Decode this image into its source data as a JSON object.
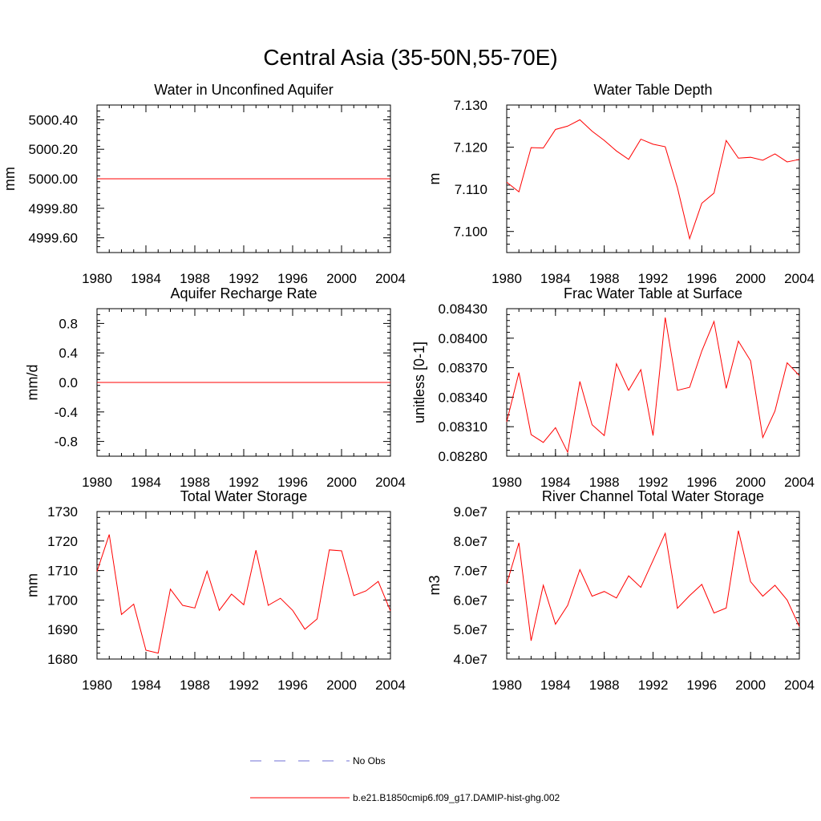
{
  "figure_title": "Central Asia (35-50N,55-70E)",
  "colors": {
    "series": "#ff0000",
    "obs": "#6f6fd6",
    "axis": "#000000"
  },
  "legend": {
    "entries": [
      {
        "label": "No Obs",
        "style": "dashed",
        "color": "#6f6fd6"
      },
      {
        "label": "b.e21.B1850cmip6.f09_g17.DAMIP-hist-ghg.002",
        "style": "solid",
        "color": "#ff0000"
      }
    ]
  },
  "chart_data": [
    {
      "id": "water-unconfined",
      "type": "line",
      "title": "Water in Unconfined Aquifer",
      "xlabel": "",
      "ylabel": "mm",
      "xlim": [
        1980,
        2004
      ],
      "ylim": [
        4999.5,
        5000.5
      ],
      "xticks": [
        1980,
        1984,
        1988,
        1992,
        1996,
        2000,
        2004
      ],
      "xticklabels": [
        "1980",
        "1984",
        "1988",
        "1992",
        "1996",
        "2000",
        "2004"
      ],
      "yticks": [
        4999.6,
        4999.8,
        5000.0,
        5000.2,
        5000.4
      ],
      "yticklabels": [
        "4999.60",
        "4999.80",
        "5000.00",
        "5000.20",
        "5000.40"
      ],
      "x": [
        1980,
        1981,
        1982,
        1983,
        1984,
        1985,
        1986,
        1987,
        1988,
        1989,
        1990,
        1991,
        1992,
        1993,
        1994,
        1995,
        1996,
        1997,
        1998,
        1999,
        2000,
        2001,
        2002,
        2003,
        2004
      ],
      "series": [
        {
          "values": [
            5000,
            5000,
            5000,
            5000,
            5000,
            5000,
            5000,
            5000,
            5000,
            5000,
            5000,
            5000,
            5000,
            5000,
            5000,
            5000,
            5000,
            5000,
            5000,
            5000,
            5000,
            5000,
            5000,
            5000,
            5000
          ]
        }
      ]
    },
    {
      "id": "water-table-depth",
      "type": "line",
      "title": "Water Table Depth",
      "xlabel": "",
      "ylabel": "m",
      "xlim": [
        1980,
        2004
      ],
      "ylim": [
        7.095,
        7.13
      ],
      "xticks": [
        1980,
        1984,
        1988,
        1992,
        1996,
        2000,
        2004
      ],
      "xticklabels": [
        "1980",
        "1984",
        "1988",
        "1992",
        "1996",
        "2000",
        "2004"
      ],
      "yticks": [
        7.1,
        7.11,
        7.12,
        7.13
      ],
      "yticklabels": [
        "7.100",
        "7.110",
        "7.120",
        "7.130"
      ],
      "x": [
        1980,
        1981,
        1982,
        1983,
        1984,
        1985,
        1986,
        1987,
        1988,
        1989,
        1990,
        1991,
        1992,
        1993,
        1994,
        1995,
        1996,
        1997,
        1998,
        1999,
        2000,
        2001,
        2002,
        2003,
        2004
      ],
      "series": [
        {
          "values": [
            7.1117,
            7.1094,
            7.1199,
            7.1198,
            7.1242,
            7.125,
            7.1265,
            7.1238,
            7.1216,
            7.1191,
            7.1171,
            7.1219,
            7.1207,
            7.1201,
            7.1104,
            7.0983,
            7.1067,
            7.1091,
            7.1216,
            7.1174,
            7.1176,
            7.1169,
            7.1184,
            7.1165,
            7.1171
          ]
        }
      ]
    },
    {
      "id": "aquifer-recharge",
      "type": "line",
      "title": "Aquifer Recharge Rate",
      "xlabel": "",
      "ylabel": "mm/d",
      "xlim": [
        1980,
        2004
      ],
      "ylim": [
        -1.0,
        1.0
      ],
      "xticks": [
        1980,
        1984,
        1988,
        1992,
        1996,
        2000,
        2004
      ],
      "xticklabels": [
        "1980",
        "1984",
        "1988",
        "1992",
        "1996",
        "2000",
        "2004"
      ],
      "yticks": [
        -0.8,
        -0.4,
        0.0,
        0.4,
        0.8
      ],
      "yticklabels": [
        "-0.8",
        "-0.4",
        "0.0",
        "0.4",
        "0.8"
      ],
      "x": [
        1980,
        1981,
        1982,
        1983,
        1984,
        1985,
        1986,
        1987,
        1988,
        1989,
        1990,
        1991,
        1992,
        1993,
        1994,
        1995,
        1996,
        1997,
        1998,
        1999,
        2000,
        2001,
        2002,
        2003,
        2004
      ],
      "series": [
        {
          "values": [
            0,
            0,
            0,
            0,
            0,
            0,
            0,
            0,
            0,
            0,
            0,
            0,
            0,
            0,
            0,
            0,
            0,
            0,
            0,
            0,
            0,
            0,
            0,
            0,
            0
          ]
        }
      ]
    },
    {
      "id": "frac-water-table",
      "type": "line",
      "title": "Frac Water Table at Surface",
      "xlabel": "",
      "ylabel": "unitless [0-1]",
      "xlim": [
        1980,
        2004
      ],
      "ylim": [
        0.0828,
        0.0843
      ],
      "xticks": [
        1980,
        1984,
        1988,
        1992,
        1996,
        2000,
        2004
      ],
      "xticklabels": [
        "1980",
        "1984",
        "1988",
        "1992",
        "1996",
        "2000",
        "2004"
      ],
      "yticks": [
        0.0828,
        0.0831,
        0.0834,
        0.0837,
        0.084,
        0.0843
      ],
      "yticklabels": [
        "0.08280",
        "0.08310",
        "0.08340",
        "0.08370",
        "0.08400",
        "0.08430"
      ],
      "x": [
        1980,
        1981,
        1982,
        1983,
        1984,
        1985,
        1986,
        1987,
        1988,
        1989,
        1990,
        1991,
        1992,
        1993,
        1994,
        1995,
        1996,
        1997,
        1998,
        1999,
        2000,
        2001,
        2002,
        2003,
        2004
      ],
      "series": [
        {
          "values": [
            0.08315,
            0.08365,
            0.08302,
            0.08294,
            0.08309,
            0.08284,
            0.08356,
            0.08312,
            0.08301,
            0.08374,
            0.08347,
            0.08368,
            0.08301,
            0.08421,
            0.08347,
            0.0835,
            0.08387,
            0.08417,
            0.08349,
            0.08397,
            0.08377,
            0.08299,
            0.08326,
            0.08375,
            0.08362
          ]
        }
      ]
    },
    {
      "id": "total-water-storage",
      "type": "line",
      "title": "Total Water Storage",
      "xlabel": "",
      "ylabel": "mm",
      "xlim": [
        1980,
        2004
      ],
      "ylim": [
        1680,
        1730
      ],
      "xticks": [
        1980,
        1984,
        1988,
        1992,
        1996,
        2000,
        2004
      ],
      "xticklabels": [
        "1980",
        "1984",
        "1988",
        "1992",
        "1996",
        "2000",
        "2004"
      ],
      "yticks": [
        1680,
        1690,
        1700,
        1710,
        1720,
        1730
      ],
      "yticklabels": [
        "1680",
        "1690",
        "1700",
        "1710",
        "1720",
        "1730"
      ],
      "x": [
        1980,
        1981,
        1982,
        1983,
        1984,
        1985,
        1986,
        1987,
        1988,
        1989,
        1990,
        1991,
        1992,
        1993,
        1994,
        1995,
        1996,
        1997,
        1998,
        1999,
        2000,
        2001,
        2002,
        2003,
        2004
      ],
      "series": [
        {
          "values": [
            1709.7,
            1722.2,
            1695.1,
            1698.6,
            1683.0,
            1682.0,
            1703.7,
            1698.2,
            1697.3,
            1709.8,
            1696.5,
            1702.0,
            1698.4,
            1716.9,
            1698.2,
            1700.6,
            1696.5,
            1690.1,
            1693.6,
            1717.0,
            1716.7,
            1701.5,
            1703.1,
            1706.3,
            1696.3
          ]
        }
      ]
    },
    {
      "id": "river-channel-storage",
      "type": "line",
      "title": "River Channel Total Water Storage",
      "xlabel": "",
      "ylabel": "m3",
      "xlim": [
        1980,
        2004
      ],
      "ylim": [
        40000000,
        90000000
      ],
      "xticks": [
        1980,
        1984,
        1988,
        1992,
        1996,
        2000,
        2004
      ],
      "xticklabels": [
        "1980",
        "1984",
        "1988",
        "1992",
        "1996",
        "2000",
        "2004"
      ],
      "yticks": [
        40000000,
        50000000,
        60000000,
        70000000,
        80000000,
        90000000
      ],
      "yticklabels": [
        "4.0e7",
        "5.0e7",
        "6.0e7",
        "7.0e7",
        "8.0e7",
        "9.0e7"
      ],
      "x": [
        1980,
        1981,
        1982,
        1983,
        1984,
        1985,
        1986,
        1987,
        1988,
        1989,
        1990,
        1991,
        1992,
        1993,
        1994,
        1995,
        1996,
        1997,
        1998,
        1999,
        2000,
        2001,
        2002,
        2003,
        2004
      ],
      "series": [
        {
          "values": [
            65500000,
            79400000,
            46200000,
            65000000,
            51800000,
            58200000,
            70300000,
            61300000,
            62900000,
            60700000,
            68200000,
            64300000,
            73400000,
            82600000,
            57200000,
            61500000,
            65300000,
            55600000,
            57300000,
            83500000,
            66200000,
            61300000,
            65000000,
            60000000,
            51000000
          ]
        }
      ]
    }
  ]
}
